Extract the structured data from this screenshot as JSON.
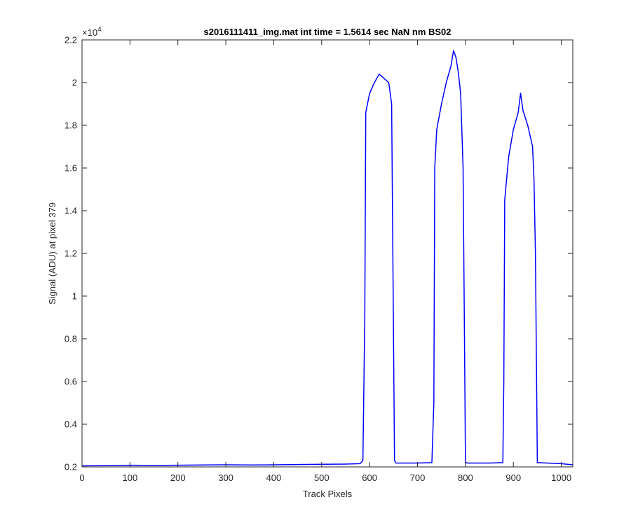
{
  "chart_data": {
    "type": "line",
    "title": "s2016111411_img.mat int time = 1.5614 sec  NaN nm BS02",
    "xlabel": "Track Pixels",
    "ylabel": "Signal (ADU) at pixel 379",
    "xlim": [
      0,
      1024
    ],
    "ylim": [
      0.2,
      2.2
    ],
    "y_multiplier": "×10⁴",
    "y_multiplier_base": "×10",
    "y_multiplier_exp": "4",
    "xticks": [
      "0",
      "100",
      "200",
      "300",
      "400",
      "500",
      "600",
      "700",
      "800",
      "900",
      "1000"
    ],
    "xtick_values": [
      0,
      100,
      200,
      300,
      400,
      500,
      600,
      700,
      800,
      900,
      1000
    ],
    "yticks": [
      "0.2",
      "0.4",
      "0.6",
      "0.8",
      "1",
      "1.2",
      "1.4",
      "1.6",
      "1.8",
      "2",
      "2.2"
    ],
    "ytick_values": [
      0.2,
      0.4,
      0.6,
      0.8,
      1.0,
      1.2,
      1.4,
      1.6,
      1.8,
      2.0,
      2.2
    ],
    "grid": false,
    "line_color": "#0000ff",
    "series": [
      {
        "x": [
          0,
          50,
          100,
          150,
          200,
          250,
          300,
          350,
          400,
          450,
          500,
          550,
          580,
          586,
          590,
          592,
          600,
          610,
          620,
          630,
          640,
          646,
          650,
          652,
          655,
          700,
          730,
          734,
          736,
          740,
          750,
          760,
          770,
          775,
          780,
          785,
          790,
          795,
          798,
          800,
          805,
          850,
          878,
          880,
          882,
          890,
          900,
          910,
          915,
          920,
          930,
          940,
          943,
          946,
          950,
          1000,
          1024
        ],
        "y": [
          0.205,
          0.206,
          0.208,
          0.207,
          0.208,
          0.209,
          0.21,
          0.209,
          0.21,
          0.211,
          0.212,
          0.213,
          0.215,
          0.23,
          0.9,
          1.86,
          1.95,
          2.0,
          2.04,
          2.02,
          2.0,
          1.9,
          0.8,
          0.23,
          0.218,
          0.218,
          0.22,
          0.5,
          1.6,
          1.78,
          1.9,
          2.0,
          2.08,
          2.15,
          2.12,
          2.05,
          1.95,
          1.6,
          0.8,
          0.22,
          0.218,
          0.218,
          0.22,
          0.6,
          1.45,
          1.65,
          1.78,
          1.86,
          1.95,
          1.87,
          1.8,
          1.7,
          1.55,
          1.2,
          0.22,
          0.215,
          0.21
        ]
      }
    ]
  }
}
